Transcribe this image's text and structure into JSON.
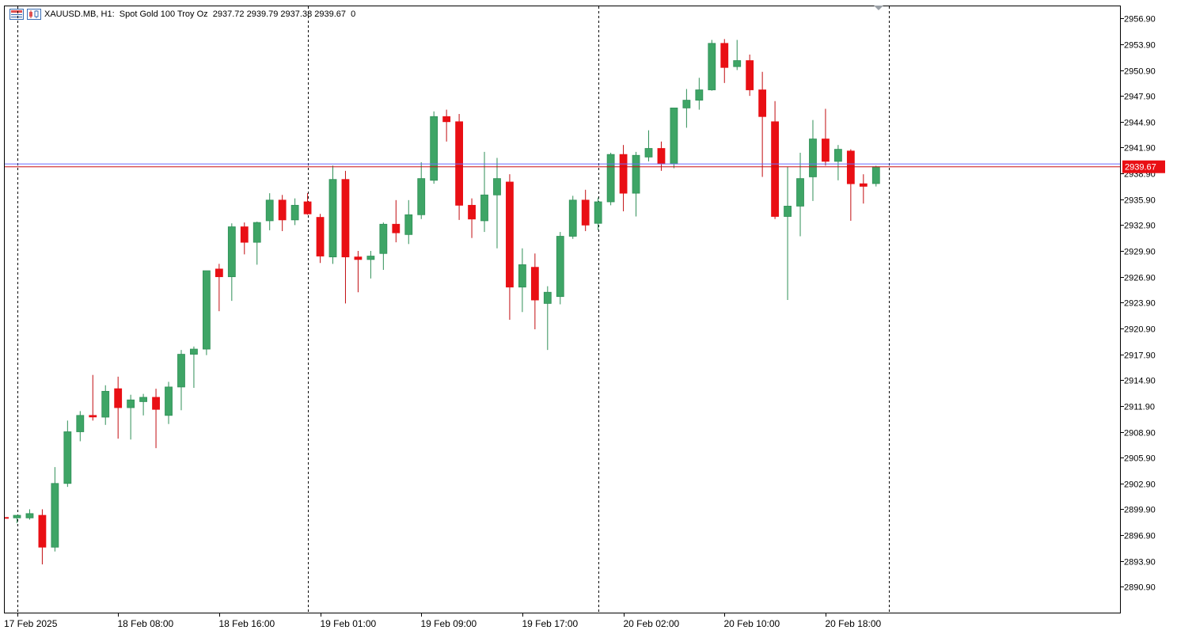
{
  "header": {
    "symbol": "XAUUSD.MB, H1:",
    "description": "Spot Gold 100 Troy Oz",
    "ohlc": "2937.72 2939.79 2937.38 2939.67",
    "volume": "0"
  },
  "icons": {
    "menu": "grid-menu-icon",
    "chart_type": "candlestick-chart-icon",
    "scroll_marker": "shift-triangle-icon"
  },
  "colors": {
    "up": "#3ea566",
    "down": "#e90f14",
    "wick_up": "#2f8f57",
    "wick_down": "#c20c10",
    "bid_line": "#c90e12",
    "ask_line": "#6b6bff",
    "price_tag": "#e90f14",
    "ask_tag": "#1c2fd1"
  },
  "chart_data": {
    "type": "candlestick",
    "symbol": "XAUUSD.MB",
    "timeframe": "H1",
    "y_range": [
      2887.9,
      2958.3
    ],
    "y_ticks": [
      2890.9,
      2893.9,
      2896.9,
      2899.9,
      2902.9,
      2905.9,
      2908.9,
      2911.9,
      2914.9,
      2917.9,
      2920.9,
      2923.9,
      2926.9,
      2929.9,
      2932.9,
      2935.9,
      2938.9,
      2941.9,
      2944.9,
      2947.9,
      2950.9,
      2953.9,
      2956.9
    ],
    "y_tick_labels": [
      "2890.90",
      "2893.90",
      "2896.90",
      "2899.90",
      "2902.90",
      "2905.90",
      "2908.90",
      "2911.90",
      "2914.90",
      "2917.90",
      "2920.90",
      "2923.90",
      "2926.90",
      "2929.90",
      "2932.90",
      "2935.90",
      "2938.90",
      "2941.90",
      "2944.90",
      "2947.90",
      "2950.90",
      "2953.90",
      "2956.90"
    ],
    "x_labels": [
      "17 Feb 2025",
      "18 Feb 08:00",
      "18 Feb 16:00",
      "19 Feb 01:00",
      "19 Feb 09:00",
      "19 Feb 17:00",
      "20 Feb 02:00",
      "20 Feb 10:00",
      "20 Feb 18:00"
    ],
    "x_label_bar_index": [
      0,
      8,
      16,
      24,
      32,
      40,
      48,
      56,
      64
    ],
    "day_separator_bar_index": [
      0,
      23,
      46,
      69
    ],
    "current_price": 2939.67,
    "current_price_label": "2939.67",
    "ask_price": 2940.0,
    "bars": [
      {
        "o": 2898.9,
        "h": 2899.2,
        "l": 2898.3,
        "c": 2899.2
      },
      {
        "o": 2898.9,
        "h": 2899.9,
        "l": 2898.7,
        "c": 2899.4
      },
      {
        "o": 2899.2,
        "h": 2899.9,
        "l": 2893.5,
        "c": 2895.5
      },
      {
        "o": 2895.5,
        "h": 2904.8,
        "l": 2895.0,
        "c": 2902.9
      },
      {
        "o": 2902.9,
        "h": 2910.2,
        "l": 2902.5,
        "c": 2908.9
      },
      {
        "o": 2908.9,
        "h": 2911.3,
        "l": 2907.8,
        "c": 2910.8
      },
      {
        "o": 2910.8,
        "h": 2915.5,
        "l": 2910.2,
        "c": 2910.7
      },
      {
        "o": 2910.6,
        "h": 2914.3,
        "l": 2909.7,
        "c": 2913.6
      },
      {
        "o": 2913.9,
        "h": 2915.3,
        "l": 2908.1,
        "c": 2911.7
      },
      {
        "o": 2911.7,
        "h": 2913.2,
        "l": 2908.0,
        "c": 2912.6
      },
      {
        "o": 2912.4,
        "h": 2913.3,
        "l": 2910.8,
        "c": 2912.9
      },
      {
        "o": 2912.9,
        "h": 2913.9,
        "l": 2907.0,
        "c": 2911.5
      },
      {
        "o": 2910.8,
        "h": 2914.7,
        "l": 2909.8,
        "c": 2914.1
      },
      {
        "o": 2914.1,
        "h": 2918.4,
        "l": 2911.4,
        "c": 2917.9
      },
      {
        "o": 2917.9,
        "h": 2918.8,
        "l": 2914.0,
        "c": 2918.5
      },
      {
        "o": 2918.5,
        "h": 2927.5,
        "l": 2917.8,
        "c": 2927.6
      },
      {
        "o": 2927.8,
        "h": 2928.4,
        "l": 2922.9,
        "c": 2926.9
      },
      {
        "o": 2926.9,
        "h": 2933.1,
        "l": 2924.1,
        "c": 2932.7
      },
      {
        "o": 2932.7,
        "h": 2933.2,
        "l": 2929.5,
        "c": 2930.9
      },
      {
        "o": 2930.9,
        "h": 2933.3,
        "l": 2928.3,
        "c": 2933.2
      },
      {
        "o": 2933.4,
        "h": 2936.6,
        "l": 2932.3,
        "c": 2935.8
      },
      {
        "o": 2935.8,
        "h": 2936.4,
        "l": 2932.2,
        "c": 2933.5
      },
      {
        "o": 2933.5,
        "h": 2936.0,
        "l": 2932.9,
        "c": 2935.2
      },
      {
        "o": 2935.6,
        "h": 2936.6,
        "l": 2934.1,
        "c": 2934.2
      },
      {
        "o": 2933.8,
        "h": 2934.2,
        "l": 2928.5,
        "c": 2929.3
      },
      {
        "o": 2929.2,
        "h": 2939.8,
        "l": 2928.4,
        "c": 2938.2
      },
      {
        "o": 2938.2,
        "h": 2939.2,
        "l": 2923.8,
        "c": 2929.2
      },
      {
        "o": 2929.2,
        "h": 2929.9,
        "l": 2925.1,
        "c": 2928.9
      },
      {
        "o": 2928.9,
        "h": 2929.9,
        "l": 2926.7,
        "c": 2929.3
      },
      {
        "o": 2929.6,
        "h": 2933.2,
        "l": 2927.7,
        "c": 2933.0
      },
      {
        "o": 2933.0,
        "h": 2935.8,
        "l": 2930.9,
        "c": 2932.0
      },
      {
        "o": 2931.8,
        "h": 2935.8,
        "l": 2930.7,
        "c": 2934.1
      },
      {
        "o": 2934.1,
        "h": 2940.2,
        "l": 2933.6,
        "c": 2938.3
      },
      {
        "o": 2938.1,
        "h": 2946.1,
        "l": 2937.7,
        "c": 2945.5
      },
      {
        "o": 2945.5,
        "h": 2946.3,
        "l": 2942.6,
        "c": 2944.9
      },
      {
        "o": 2944.9,
        "h": 2945.8,
        "l": 2933.5,
        "c": 2935.2
      },
      {
        "o": 2935.2,
        "h": 2936.0,
        "l": 2931.4,
        "c": 2933.6
      },
      {
        "o": 2933.4,
        "h": 2941.4,
        "l": 2932.1,
        "c": 2936.4
      },
      {
        "o": 2936.4,
        "h": 2940.7,
        "l": 2930.2,
        "c": 2938.3
      },
      {
        "o": 2937.9,
        "h": 2938.8,
        "l": 2921.9,
        "c": 2925.7
      },
      {
        "o": 2925.7,
        "h": 2930.2,
        "l": 2922.8,
        "c": 2928.3
      },
      {
        "o": 2928.0,
        "h": 2929.6,
        "l": 2920.8,
        "c": 2924.2
      },
      {
        "o": 2923.8,
        "h": 2925.8,
        "l": 2918.4,
        "c": 2925.1
      },
      {
        "o": 2924.6,
        "h": 2932.1,
        "l": 2923.7,
        "c": 2931.6
      },
      {
        "o": 2931.6,
        "h": 2936.3,
        "l": 2931.3,
        "c": 2935.8
      },
      {
        "o": 2935.8,
        "h": 2937.0,
        "l": 2932.2,
        "c": 2932.9
      },
      {
        "o": 2933.1,
        "h": 2936.1,
        "l": 2932.3,
        "c": 2935.6
      },
      {
        "o": 2935.6,
        "h": 2941.3,
        "l": 2935.2,
        "c": 2941.1
      },
      {
        "o": 2941.1,
        "h": 2942.2,
        "l": 2934.5,
        "c": 2936.6
      },
      {
        "o": 2936.6,
        "h": 2941.4,
        "l": 2933.9,
        "c": 2941.0
      },
      {
        "o": 2940.8,
        "h": 2943.9,
        "l": 2940.3,
        "c": 2941.8
      },
      {
        "o": 2941.8,
        "h": 2942.6,
        "l": 2939.2,
        "c": 2940.0
      },
      {
        "o": 2940.0,
        "h": 2946.5,
        "l": 2939.5,
        "c": 2946.5
      },
      {
        "o": 2946.5,
        "h": 2948.7,
        "l": 2944.2,
        "c": 2947.4
      },
      {
        "o": 2947.4,
        "h": 2950.0,
        "l": 2946.3,
        "c": 2948.6
      },
      {
        "o": 2948.6,
        "h": 2954.4,
        "l": 2948.5,
        "c": 2954.0
      },
      {
        "o": 2954.0,
        "h": 2954.5,
        "l": 2949.4,
        "c": 2951.2
      },
      {
        "o": 2951.3,
        "h": 2954.4,
        "l": 2950.9,
        "c": 2952.0
      },
      {
        "o": 2952.0,
        "h": 2952.7,
        "l": 2947.9,
        "c": 2948.6
      },
      {
        "o": 2948.6,
        "h": 2950.7,
        "l": 2938.5,
        "c": 2945.5
      },
      {
        "o": 2944.9,
        "h": 2947.3,
        "l": 2933.6,
        "c": 2933.9
      },
      {
        "o": 2933.9,
        "h": 2939.7,
        "l": 2924.2,
        "c": 2935.1
      },
      {
        "o": 2935.1,
        "h": 2941.3,
        "l": 2931.6,
        "c": 2938.3
      },
      {
        "o": 2938.5,
        "h": 2945.1,
        "l": 2935.7,
        "c": 2942.9
      },
      {
        "o": 2942.9,
        "h": 2946.4,
        "l": 2939.8,
        "c": 2940.3
      },
      {
        "o": 2940.3,
        "h": 2942.2,
        "l": 2938.1,
        "c": 2941.7
      },
      {
        "o": 2941.5,
        "h": 2941.7,
        "l": 2933.4,
        "c": 2937.7
      },
      {
        "o": 2937.7,
        "h": 2938.8,
        "l": 2935.4,
        "c": 2937.4
      },
      {
        "o": 2937.72,
        "h": 2939.79,
        "l": 2937.38,
        "c": 2939.67
      }
    ]
  }
}
